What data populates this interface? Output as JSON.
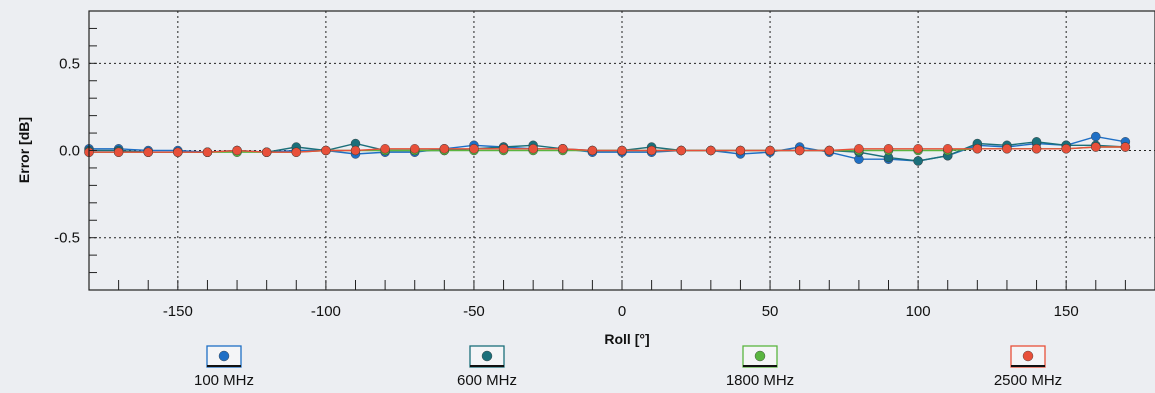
{
  "chart_data": {
    "type": "line",
    "xlabel": "Roll [°]",
    "ylabel": "Error [dB]",
    "xlim": [
      -180,
      180
    ],
    "ylim": [
      -0.8,
      0.8
    ],
    "x_ticks": [
      -150,
      -100,
      -50,
      0,
      50,
      100,
      150
    ],
    "x_tick_labels": [
      "-150",
      "-100",
      "-50",
      "0",
      "50",
      "100",
      "150"
    ],
    "y_ticks": [
      0.5,
      0.0,
      -0.5
    ],
    "y_tick_labels": [
      "0.5",
      "0.0",
      "-0.5"
    ],
    "grid": true,
    "legend_position": "bottom",
    "x": [
      -180,
      -170,
      -160,
      -150,
      -140,
      -130,
      -120,
      -110,
      -100,
      -90,
      -80,
      -70,
      -60,
      -50,
      -40,
      -30,
      -20,
      -10,
      0,
      10,
      20,
      30,
      40,
      50,
      60,
      70,
      80,
      90,
      100,
      110,
      120,
      130,
      140,
      150,
      160,
      170
    ],
    "series": [
      {
        "name": "100 MHz",
        "color": "#1f6fc5",
        "values": [
          0.01,
          0.01,
          0.0,
          0.0,
          -0.01,
          0.0,
          -0.01,
          0.0,
          0.0,
          -0.02,
          -0.01,
          -0.01,
          0.01,
          0.03,
          0.02,
          0.01,
          0.01,
          -0.01,
          -0.01,
          -0.01,
          0.0,
          0.0,
          -0.02,
          -0.01,
          0.02,
          -0.01,
          -0.05,
          -0.05,
          -0.06,
          -0.03,
          0.03,
          0.02,
          0.04,
          0.03,
          0.08,
          0.05
        ]
      },
      {
        "name": "600 MHz",
        "color": "#1b6f7a",
        "values": [
          0.0,
          0.0,
          -0.01,
          -0.01,
          -0.01,
          0.0,
          -0.01,
          0.02,
          0.0,
          0.04,
          0.0,
          0.0,
          0.0,
          0.01,
          0.02,
          0.03,
          0.01,
          0.0,
          0.0,
          0.02,
          0.0,
          0.0,
          0.0,
          0.0,
          0.0,
          0.0,
          -0.01,
          -0.04,
          -0.06,
          -0.03,
          0.04,
          0.03,
          0.05,
          0.03,
          0.03,
          0.02
        ]
      },
      {
        "name": "1800 MHz",
        "color": "#5ab540",
        "values": [
          -0.01,
          -0.01,
          -0.01,
          -0.01,
          -0.01,
          -0.01,
          -0.01,
          -0.01,
          0.0,
          0.0,
          0.0,
          0.0,
          0.0,
          0.0,
          0.0,
          0.0,
          0.0,
          0.0,
          0.0,
          0.0,
          0.0,
          0.0,
          0.0,
          0.0,
          0.0,
          0.0,
          0.0,
          0.0,
          0.0,
          0.0,
          0.01,
          0.01,
          0.01,
          0.01,
          0.02,
          0.02
        ]
      },
      {
        "name": "2500 MHz",
        "color": "#e8503a",
        "values": [
          -0.01,
          -0.01,
          -0.01,
          -0.01,
          -0.01,
          0.0,
          -0.01,
          -0.01,
          0.0,
          0.0,
          0.01,
          0.01,
          0.01,
          0.01,
          0.01,
          0.01,
          0.01,
          0.0,
          0.0,
          0.0,
          0.0,
          0.0,
          0.0,
          0.0,
          0.0,
          0.0,
          0.01,
          0.01,
          0.01,
          0.01,
          0.01,
          0.01,
          0.01,
          0.01,
          0.02,
          0.02
        ]
      }
    ]
  }
}
